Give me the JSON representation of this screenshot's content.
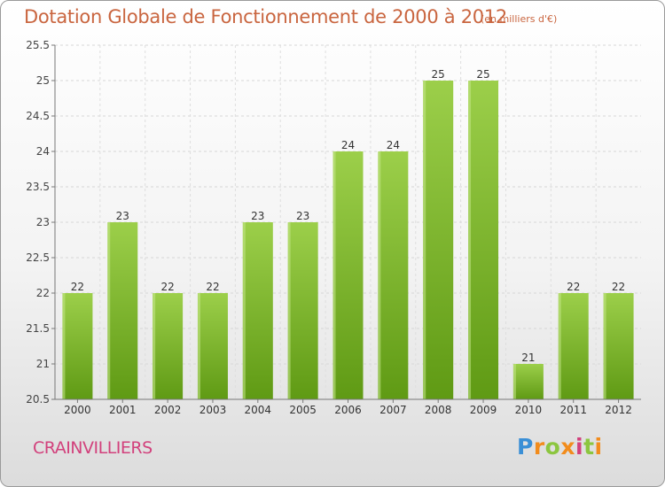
{
  "header": {
    "title": "Dotation Globale de Fonctionnement de 2000 à 2012",
    "unit": "(en milliers d'€)"
  },
  "footer": {
    "town": "CRAINVILLIERS",
    "logo": "Proxiti"
  },
  "colors": {
    "bar_light": "#9ccf4a",
    "bar_dark": "#5f9a14",
    "title": "#c9653f",
    "town": "#d2417c",
    "logo": [
      "#3a8fd6",
      "#f28c1c",
      "#8cc63f",
      "#f28c1c",
      "#d2417c",
      "#8cc63f",
      "#f28c1c"
    ]
  },
  "chart_data": {
    "type": "bar",
    "title": "Dotation Globale de Fonctionnement de 2000 à 2012",
    "subtitle": "(en milliers d'€)",
    "categories": [
      "2000",
      "2001",
      "2002",
      "2003",
      "2004",
      "2005",
      "2006",
      "2007",
      "2008",
      "2009",
      "2010",
      "2011",
      "2012"
    ],
    "values": [
      22,
      23,
      22,
      22,
      23,
      23,
      24,
      24,
      25,
      25,
      21,
      22,
      22
    ],
    "ylim": [
      20.5,
      25.5
    ],
    "yticks": [
      "20.5",
      "21",
      "21.5",
      "22",
      "22.5",
      "23",
      "23.5",
      "24",
      "24.5",
      "25",
      "25.5"
    ],
    "grid": true,
    "legend": "none"
  }
}
